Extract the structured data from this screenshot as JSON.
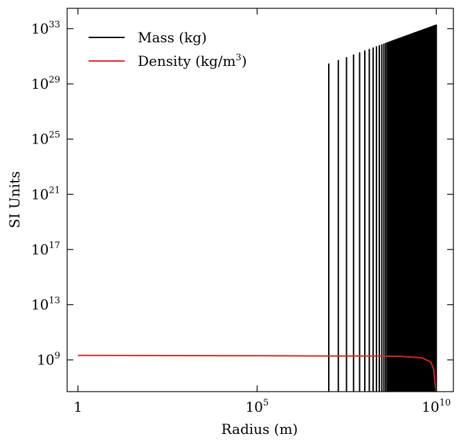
{
  "chart_data": {
    "type": "line",
    "xscale": "log",
    "yscale": "log",
    "xlim": [
      0.5,
      30000000000
    ],
    "ylim": [
      5000000.0,
      3e+34
    ],
    "xticks": [
      {
        "value": 1,
        "base": "1",
        "exp": ""
      },
      {
        "value": 100000,
        "base": "10",
        "exp": "5"
      },
      {
        "value": 10000000000,
        "base": "10",
        "exp": "10"
      }
    ],
    "yticks": [
      {
        "value": 1000000000.0,
        "base": "10",
        "exp": "9"
      },
      {
        "value": 10000000000000.0,
        "base": "10",
        "exp": "13"
      },
      {
        "value": 1e+17,
        "base": "10",
        "exp": "17"
      },
      {
        "value": 1e+21,
        "base": "10",
        "exp": "21"
      },
      {
        "value": 1e+25,
        "base": "10",
        "exp": "25"
      },
      {
        "value": 1e+29,
        "base": "10",
        "exp": "29"
      },
      {
        "value": 1e+33,
        "base": "10",
        "exp": "33"
      }
    ],
    "xlabel": "Radius (m)",
    "ylabel": "SI Units",
    "legend_position": "top-left",
    "series": [
      {
        "name": "Mass (kg)",
        "color": "#000000",
        "x_range": [
          10000000,
          10000000000
        ],
        "y_at_start": 3e+30,
        "y_at_end": 2e+33
      },
      {
        "name": "Density (kg/m³)",
        "color": "#d62728",
        "x": [
          1,
          100000,
          10000000,
          100000000,
          1000000000,
          4000000000,
          7000000000,
          8500000000,
          9500000000,
          10000000000
        ],
        "y": [
          2100000000.0,
          2000000000.0,
          1900000000.0,
          1900000000.0,
          1800000000.0,
          1400000000.0,
          700000000.0,
          200000000.0,
          10000000.0,
          5000000.0
        ]
      }
    ],
    "legend": [
      {
        "label": "Mass (kg)",
        "color": "#000000"
      },
      {
        "label_main": "Density (kg/m",
        "label_sup": "3",
        "label_end": ")",
        "color": "#d62728"
      }
    ]
  }
}
